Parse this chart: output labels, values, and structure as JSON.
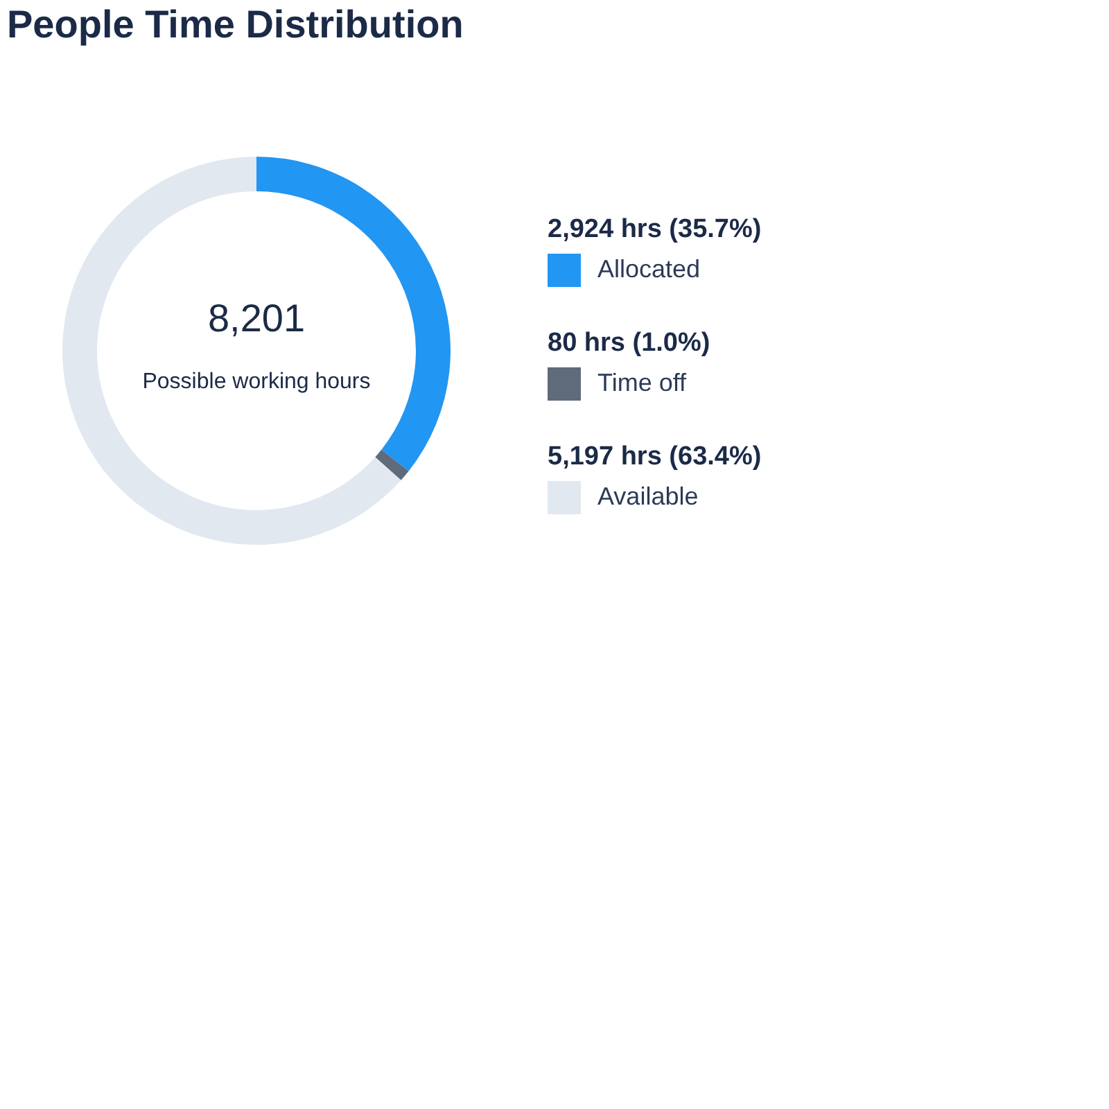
{
  "chart_data": {
    "type": "donut",
    "title": "People Time Distribution",
    "categories": [
      "Allocated",
      "Time off",
      "Available"
    ],
    "values": [
      2924,
      80,
      5197
    ],
    "value_labels": [
      "2,924 hrs (35.7%)",
      "80 hrs (1.0%)",
      "5,197 hrs (63.4%)"
    ],
    "colors": [
      "#2196f3",
      "#5f6b7a",
      "#e1e8f0"
    ],
    "annotations": [
      "8,201",
      "Possible working hours"
    ],
    "legend": "right"
  }
}
